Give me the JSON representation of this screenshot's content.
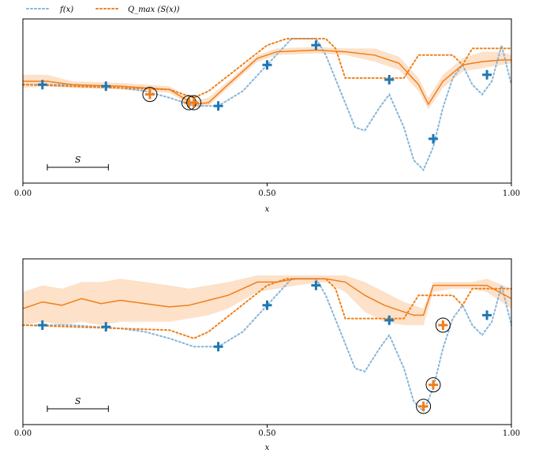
{
  "legend": {
    "items": [
      {
        "label": "f(x)",
        "color": "#86b6d9",
        "style": "dotted"
      },
      {
        "label": "Q_max (S(x))",
        "color": "#f07f1a",
        "style": "dotted"
      }
    ]
  },
  "chart_data": [
    {
      "type": "line",
      "xlabel": "x",
      "xlim": [
        0.0,
        1.0
      ],
      "ylim": [
        0,
        1
      ],
      "xticks": [
        "0.00",
        "0.50",
        "1.00"
      ],
      "scale_bar": {
        "label": "S",
        "x_start": 0.05,
        "x_end": 0.175
      },
      "series": [
        {
          "role": "f",
          "color": "#86b6d9",
          "x": [
            0.0,
            0.05,
            0.1,
            0.15,
            0.2,
            0.25,
            0.3,
            0.35,
            0.4,
            0.45,
            0.5,
            0.55,
            0.6,
            0.62,
            0.65,
            0.68,
            0.7,
            0.73,
            0.75,
            0.78,
            0.8,
            0.82,
            0.84,
            0.86,
            0.88,
            0.9,
            0.92,
            0.94,
            0.96,
            0.98,
            1.0
          ],
          "y": [
            0.6,
            0.6,
            0.6,
            0.59,
            0.58,
            0.56,
            0.52,
            0.47,
            0.47,
            0.56,
            0.72,
            0.88,
            0.88,
            0.78,
            0.56,
            0.34,
            0.32,
            0.46,
            0.54,
            0.34,
            0.14,
            0.08,
            0.22,
            0.46,
            0.64,
            0.72,
            0.6,
            0.54,
            0.62,
            0.84,
            0.6
          ]
        },
        {
          "role": "q_true",
          "color": "#f07f1a",
          "x": [
            0.0,
            0.3,
            0.35,
            0.38,
            0.44,
            0.5,
            0.54,
            0.62,
            0.64,
            0.66,
            0.7,
            0.74,
            0.76,
            0.78,
            0.81,
            0.83,
            0.88,
            0.9,
            0.92,
            0.94,
            1.0
          ],
          "y": [
            0.6,
            0.57,
            0.52,
            0.56,
            0.7,
            0.84,
            0.88,
            0.88,
            0.82,
            0.64,
            0.64,
            0.64,
            0.64,
            0.64,
            0.78,
            0.78,
            0.78,
            0.72,
            0.82,
            0.82,
            0.82
          ]
        },
        {
          "role": "q_mean",
          "color": "#f07f1a",
          "x": [
            0.0,
            0.05,
            0.1,
            0.2,
            0.3,
            0.35,
            0.38,
            0.42,
            0.48,
            0.52,
            0.6,
            0.66,
            0.72,
            0.77,
            0.81,
            0.83,
            0.86,
            0.9,
            0.94,
            0.98,
            1.0
          ],
          "y": [
            0.62,
            0.62,
            0.6,
            0.59,
            0.57,
            0.48,
            0.49,
            0.6,
            0.76,
            0.8,
            0.81,
            0.8,
            0.78,
            0.73,
            0.6,
            0.48,
            0.62,
            0.72,
            0.74,
            0.75,
            0.75
          ]
        },
        {
          "role": "q_band",
          "color": "#fdd9bb",
          "x": [
            0.0,
            0.05,
            0.1,
            0.2,
            0.3,
            0.35,
            0.38,
            0.42,
            0.48,
            0.52,
            0.6,
            0.66,
            0.72,
            0.77,
            0.81,
            0.83,
            0.86,
            0.9,
            0.94,
            0.98,
            1.0
          ],
          "y_low": [
            0.58,
            0.59,
            0.58,
            0.57,
            0.55,
            0.46,
            0.47,
            0.58,
            0.74,
            0.78,
            0.79,
            0.78,
            0.74,
            0.69,
            0.56,
            0.45,
            0.58,
            0.68,
            0.7,
            0.72,
            0.73
          ],
          "y_high": [
            0.66,
            0.66,
            0.62,
            0.61,
            0.59,
            0.5,
            0.52,
            0.62,
            0.78,
            0.82,
            0.83,
            0.82,
            0.82,
            0.77,
            0.64,
            0.52,
            0.66,
            0.76,
            0.8,
            0.8,
            0.78
          ]
        }
      ],
      "observed_points": {
        "color": "#1f77b4",
        "x": [
          0.04,
          0.17,
          0.4,
          0.5,
          0.6,
          0.75,
          0.84,
          0.95
        ],
        "y": [
          0.6,
          0.59,
          0.47,
          0.72,
          0.84,
          0.63,
          0.27,
          0.66
        ]
      },
      "selected_points": {
        "color": "#f07f1a",
        "x": [
          0.26,
          0.34,
          0.35
        ],
        "y": [
          0.54,
          0.49,
          0.49
        ]
      }
    },
    {
      "type": "line",
      "xlabel": "x",
      "xlim": [
        0.0,
        1.0
      ],
      "ylim": [
        0,
        1
      ],
      "xticks": [
        "0.00",
        "0.50",
        "1.00"
      ],
      "scale_bar": {
        "label": "S",
        "x_start": 0.05,
        "x_end": 0.175
      },
      "series": [
        {
          "role": "f",
          "color": "#86b6d9",
          "x": [
            0.0,
            0.05,
            0.1,
            0.15,
            0.2,
            0.25,
            0.3,
            0.35,
            0.4,
            0.45,
            0.5,
            0.55,
            0.6,
            0.62,
            0.65,
            0.68,
            0.7,
            0.73,
            0.75,
            0.78,
            0.8,
            0.82,
            0.84,
            0.86,
            0.88,
            0.9,
            0.92,
            0.94,
            0.96,
            0.98,
            1.0
          ],
          "y": [
            0.6,
            0.6,
            0.6,
            0.59,
            0.58,
            0.56,
            0.52,
            0.47,
            0.47,
            0.56,
            0.72,
            0.88,
            0.88,
            0.78,
            0.56,
            0.34,
            0.32,
            0.46,
            0.54,
            0.34,
            0.14,
            0.08,
            0.22,
            0.46,
            0.64,
            0.72,
            0.6,
            0.54,
            0.62,
            0.84,
            0.6
          ]
        },
        {
          "role": "q_true",
          "color": "#f07f1a",
          "x": [
            0.0,
            0.3,
            0.35,
            0.38,
            0.44,
            0.5,
            0.54,
            0.62,
            0.64,
            0.66,
            0.7,
            0.74,
            0.76,
            0.78,
            0.81,
            0.83,
            0.88,
            0.9,
            0.92,
            0.94,
            1.0
          ],
          "y": [
            0.6,
            0.57,
            0.52,
            0.56,
            0.7,
            0.84,
            0.88,
            0.88,
            0.82,
            0.64,
            0.64,
            0.64,
            0.64,
            0.64,
            0.78,
            0.78,
            0.78,
            0.72,
            0.82,
            0.82,
            0.82
          ]
        },
        {
          "role": "q_mean",
          "color": "#f07f1a",
          "x": [
            0.0,
            0.04,
            0.08,
            0.12,
            0.16,
            0.2,
            0.25,
            0.3,
            0.34,
            0.38,
            0.42,
            0.48,
            0.52,
            0.56,
            0.62,
            0.66,
            0.7,
            0.74,
            0.78,
            0.8,
            0.82,
            0.84,
            0.88,
            0.92,
            0.95,
            1.0
          ],
          "y": [
            0.7,
            0.74,
            0.72,
            0.76,
            0.73,
            0.75,
            0.73,
            0.71,
            0.72,
            0.75,
            0.78,
            0.86,
            0.86,
            0.88,
            0.88,
            0.86,
            0.78,
            0.72,
            0.68,
            0.66,
            0.66,
            0.84,
            0.84,
            0.84,
            0.84,
            0.76
          ]
        },
        {
          "role": "q_band",
          "color": "#fdd9bb",
          "x": [
            0.0,
            0.04,
            0.08,
            0.12,
            0.16,
            0.2,
            0.25,
            0.3,
            0.34,
            0.38,
            0.42,
            0.48,
            0.52,
            0.56,
            0.62,
            0.66,
            0.7,
            0.74,
            0.78,
            0.8,
            0.82,
            0.84,
            0.88,
            0.92,
            0.95,
            1.0
          ],
          "y_low": [
            0.6,
            0.62,
            0.6,
            0.62,
            0.6,
            0.62,
            0.62,
            0.62,
            0.64,
            0.66,
            0.7,
            0.8,
            0.82,
            0.84,
            0.86,
            0.8,
            0.68,
            0.62,
            0.6,
            0.6,
            0.6,
            0.8,
            0.82,
            0.82,
            0.8,
            0.7
          ],
          "y_high": [
            0.8,
            0.84,
            0.82,
            0.86,
            0.86,
            0.88,
            0.86,
            0.84,
            0.82,
            0.84,
            0.86,
            0.9,
            0.9,
            0.9,
            0.9,
            0.9,
            0.86,
            0.8,
            0.74,
            0.72,
            0.7,
            0.86,
            0.86,
            0.86,
            0.88,
            0.82
          ]
        }
      ],
      "observed_points": {
        "color": "#1f77b4",
        "x": [
          0.04,
          0.17,
          0.4,
          0.5,
          0.6,
          0.75,
          0.95
        ],
        "y": [
          0.6,
          0.59,
          0.47,
          0.72,
          0.84,
          0.63,
          0.66
        ]
      },
      "selected_points": {
        "color": "#f07f1a",
        "x": [
          0.82,
          0.84,
          0.86
        ],
        "y": [
          0.11,
          0.24,
          0.6
        ]
      }
    }
  ]
}
